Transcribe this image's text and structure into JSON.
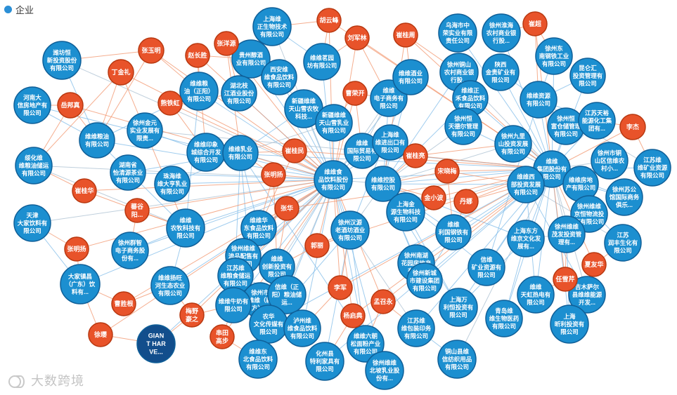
{
  "legend": {
    "label": "企业",
    "color": "#2b8fd6"
  },
  "watermark": {
    "text": "大数跨境"
  },
  "colors": {
    "company_fill": "#1c8fd0",
    "company_border": "#0f5f98",
    "person_fill": "#e8532a",
    "person_border": "#b83810",
    "dark_fill": "#124e8c",
    "edge_blue": "#7fbbe8",
    "edge_orange": "#f2936a",
    "edge_gray": "#a9bfd0"
  },
  "nodes": [
    {
      "id": "c1",
      "type": "company",
      "lines": [
        "潍坊恒",
        "新投资股份",
        "有限公司"
      ]
    },
    {
      "id": "c2",
      "type": "company",
      "lines": [
        "河南大",
        "信房地产有",
        "限公司"
      ]
    },
    {
      "id": "c3",
      "type": "company",
      "lines": [
        "绥化维",
        "维粮油储运",
        "有限公司"
      ]
    },
    {
      "id": "c4",
      "type": "company",
      "lines": [
        "天津",
        "大家饮料有",
        "限公司"
      ]
    },
    {
      "id": "c5",
      "type": "company",
      "lines": [
        "大家镇昌",
        "（广东）饮",
        "料有..."
      ]
    },
    {
      "id": "c6",
      "type": "dark",
      "lines": [
        "GIAN",
        "T HAR",
        "VE..."
      ]
    },
    {
      "id": "c7",
      "type": "company",
      "lines": [
        "维维粮油",
        "有限公司"
      ]
    },
    {
      "id": "c8",
      "type": "company",
      "lines": [
        "徐州金元",
        "实业发展有",
        "限责..."
      ]
    },
    {
      "id": "c9",
      "type": "company",
      "lines": [
        "湖南省",
        "怡清源茶业",
        "有限公司"
      ]
    },
    {
      "id": "c10",
      "type": "company",
      "lines": [
        "维维粮",
        "油（正阳）",
        "有限公司"
      ]
    },
    {
      "id": "c11",
      "type": "company",
      "lines": [
        "贵州醇酒",
        "业有限公司"
      ]
    },
    {
      "id": "c12",
      "type": "company",
      "lines": [
        "上海维",
        "正生物技术",
        "有限公司"
      ]
    },
    {
      "id": "c13",
      "type": "company",
      "lines": [
        "西安维",
        "维食品饮料",
        "有限公司"
      ]
    },
    {
      "id": "c14",
      "type": "company",
      "lines": [
        "湖北枝",
        "江酒业股份",
        "有限公司"
      ]
    },
    {
      "id": "c15",
      "type": "company",
      "lines": [
        "维维茗园",
        "坊有限公司"
      ]
    },
    {
      "id": "c16",
      "type": "company",
      "lines": [
        "新疆维维",
        "天山雪农牧",
        "科技..."
      ]
    },
    {
      "id": "c17",
      "type": "company",
      "lines": [
        "新疆维维",
        "天山雪乳业",
        "有限公司"
      ]
    },
    {
      "id": "c18",
      "type": "company",
      "lines": [
        "维维印象",
        "城综合开发",
        "有限公司"
      ]
    },
    {
      "id": "c19",
      "type": "company",
      "lines": [
        "维维乳业",
        "有限公司"
      ]
    },
    {
      "id": "c20",
      "type": "company",
      "lines": [
        "珠海维",
        "维大亨乳业",
        "有限公司"
      ]
    },
    {
      "id": "c21",
      "type": "company",
      "lines": [
        "维维",
        "农牧科技有",
        "限公司"
      ]
    },
    {
      "id": "c22",
      "type": "company",
      "lines": [
        "徐州群智",
        "电子商务股",
        "份有..."
      ]
    },
    {
      "id": "c23",
      "type": "company",
      "lines": [
        "维维扬旺",
        "河生态农业",
        "有限公司"
      ]
    },
    {
      "id": "c24",
      "type": "company",
      "lines": [
        "维维华",
        "东食品饮料",
        "有限公司"
      ]
    },
    {
      "id": "c25",
      "type": "company",
      "lines": [
        "徐州维维",
        "流品配售有",
        "限公司"
      ]
    },
    {
      "id": "c26",
      "type": "company",
      "lines": [
        "江苏维",
        "维粮食储运",
        "有限公司"
      ]
    },
    {
      "id": "c27",
      "type": "company",
      "lines": [
        "维维",
        "创新投资有",
        "限公司"
      ]
    },
    {
      "id": "c28",
      "type": "company",
      "lines": [
        "徐州市",
        "维维（新",
        "方）..."
      ]
    },
    {
      "id": "c29",
      "type": "company",
      "lines": [
        "维维牛奶有",
        "限公司"
      ]
    },
    {
      "id": "c30",
      "type": "company",
      "lines": [
        "信维（正",
        "阳）粮油储",
        "运..."
      ]
    },
    {
      "id": "c31",
      "type": "company",
      "lines": [
        "农华",
        "文化传媒有",
        "限公司"
      ]
    },
    {
      "id": "c32",
      "type": "company",
      "lines": [
        "泸州维",
        "维食品饮料",
        "有限公司"
      ]
    },
    {
      "id": "c33",
      "type": "company",
      "lines": [
        "维维东",
        "北食品饮料",
        "有限公司"
      ]
    },
    {
      "id": "c34",
      "type": "company",
      "lines": [
        "化州县",
        "特利家具有",
        "限公司"
      ]
    },
    {
      "id": "c35",
      "type": "company",
      "lines": [
        "维维六朝",
        "松面粉产业",
        "有限公司"
      ]
    },
    {
      "id": "c36",
      "type": "company",
      "lines": [
        "徐州维维",
        "北坡乳业股",
        "份有..."
      ]
    },
    {
      "id": "c37",
      "type": "company",
      "lines": [
        "维维食",
        "品饮料股份",
        "有限公司"
      ]
    },
    {
      "id": "c38",
      "type": "company",
      "lines": [
        "徐州汉源",
        "老酒坊酒业",
        "有限公司"
      ]
    },
    {
      "id": "c39",
      "type": "company",
      "lines": [
        "维维",
        "国际贸易有",
        "限公司"
      ]
    },
    {
      "id": "c40",
      "type": "company",
      "lines": [
        "上海维",
        "维进出口有",
        "限公司"
      ]
    },
    {
      "id": "c41",
      "type": "company",
      "lines": [
        "维维",
        "电子商务有",
        "限公司"
      ]
    },
    {
      "id": "c42",
      "type": "company",
      "lines": [
        "维维酒业",
        "有限公司"
      ]
    },
    {
      "id": "c43",
      "type": "company",
      "lines": [
        "维维控股",
        "有限公司"
      ]
    },
    {
      "id": "c44",
      "type": "company",
      "lines": [
        "上海金",
        "源生物科技",
        "有限公司"
      ]
    },
    {
      "id": "c45",
      "type": "company",
      "lines": [
        "徐州南湖",
        "花园房地产",
        "有限..."
      ]
    },
    {
      "id": "c46",
      "type": "company",
      "lines": [
        "徐州新城",
        "市建设集团",
        "有限公司"
      ]
    },
    {
      "id": "c47",
      "type": "company",
      "lines": [
        "江苏维",
        "维包装印务",
        "有限公司"
      ]
    },
    {
      "id": "c48",
      "type": "company",
      "lines": [
        "维维",
        "利国钢铁有",
        "限公司"
      ]
    },
    {
      "id": "c49",
      "type": "company",
      "lines": [
        "上海万",
        "利恒投资有",
        "限公司"
      ]
    },
    {
      "id": "c50",
      "type": "company",
      "lines": [
        "铜山县维",
        "信纺织用品",
        "有限公司"
      ]
    },
    {
      "id": "c51",
      "type": "company",
      "lines": [
        "乌海市中",
        "荣实业有限",
        "责任公司"
      ]
    },
    {
      "id": "c52",
      "type": "company",
      "lines": [
        "徐州淮海",
        "农村商业银",
        "行股..."
      ]
    },
    {
      "id": "c53",
      "type": "company",
      "lines": [
        "徐州铜山",
        "农村商业银",
        "行股..."
      ]
    },
    {
      "id": "c54",
      "type": "company",
      "lines": [
        "陕西",
        "金贵矿业有",
        "限公司"
      ]
    },
    {
      "id": "c55",
      "type": "company",
      "lines": [
        "维维正",
        "禾食品饮料",
        "有限公司"
      ]
    },
    {
      "id": "c56",
      "type": "company",
      "lines": [
        "徐州东",
        "南钢铁工业",
        "有限公司"
      ]
    },
    {
      "id": "c57",
      "type": "company",
      "lines": [
        "昆仑汇",
        "投资管理有",
        "限公司"
      ]
    },
    {
      "id": "c58",
      "type": "company",
      "lines": [
        "维维资源",
        "有限公司"
      ]
    },
    {
      "id": "c59",
      "type": "company",
      "lines": [
        "徐州恒",
        "天德尔管理",
        "有限公司"
      ]
    },
    {
      "id": "c60",
      "type": "company",
      "lines": [
        "徐州九里",
        "山投资发展",
        "有限公司"
      ]
    },
    {
      "id": "c61",
      "type": "company",
      "lines": [
        "徐州恒",
        "富仓储管理",
        "有限公司"
      ]
    },
    {
      "id": "c62",
      "type": "company",
      "lines": [
        "江苏天裕",
        "能源化工集",
        "团有..."
      ]
    },
    {
      "id": "c63",
      "type": "company",
      "lines": [
        "维维",
        "集团股份有",
        "限公司"
      ]
    },
    {
      "id": "c64",
      "type": "company",
      "lines": [
        "维维西",
        "部投资发展",
        "有限公司"
      ]
    },
    {
      "id": "c65",
      "type": "company",
      "lines": [
        "维维房地",
        "产有限公司"
      ]
    },
    {
      "id": "c66",
      "type": "company",
      "lines": [
        "徐州市铜",
        "山区信维农",
        "村小..."
      ]
    },
    {
      "id": "c67",
      "type": "company",
      "lines": [
        "江苏维",
        "维矿业资源",
        "有限公司"
      ]
    },
    {
      "id": "c68",
      "type": "company",
      "lines": [
        "徐州苏公",
        "馆国际商务",
        "俱乐..."
      ]
    },
    {
      "id": "c69",
      "type": "company",
      "lines": [
        "徐州维维",
        "京恒物流投",
        "资有限公司"
      ]
    },
    {
      "id": "c70",
      "type": "company",
      "lines": [
        "上海东方",
        "维京文化发",
        "展有..."
      ]
    },
    {
      "id": "c71",
      "type": "company",
      "lines": [
        "徐州维维",
        "茂发投资管",
        "理有..."
      ]
    },
    {
      "id": "c72",
      "type": "company",
      "lines": [
        "江苏",
        "润丰生化有",
        "限公司"
      ]
    },
    {
      "id": "c73",
      "type": "company",
      "lines": [
        "信维",
        "矿业资源有",
        "限公司"
      ]
    },
    {
      "id": "c74",
      "type": "company",
      "lines": [
        "维维",
        "天虹热电有",
        "限公司"
      ]
    },
    {
      "id": "c75",
      "type": "company",
      "lines": [
        "吉木萨尔",
        "县维维能源",
        "开发..."
      ]
    },
    {
      "id": "c76",
      "type": "company",
      "lines": [
        "青岛维",
        "维生物医药",
        "有限公司"
      ]
    },
    {
      "id": "c77",
      "type": "company",
      "lines": [
        "上海",
        "昕利投资有",
        "限公司"
      ]
    },
    {
      "id": "p1",
      "type": "person",
      "lines": [
        "张玉明"
      ]
    },
    {
      "id": "p2",
      "type": "person",
      "lines": [
        "丁金礼"
      ]
    },
    {
      "id": "p3",
      "type": "person",
      "lines": [
        "赵长胜"
      ]
    },
    {
      "id": "p4",
      "type": "person",
      "lines": [
        "张洋源"
      ]
    },
    {
      "id": "p5",
      "type": "person",
      "lines": [
        "岳邦真"
      ]
    },
    {
      "id": "p6",
      "type": "person",
      "lines": [
        "熊铁虹"
      ]
    },
    {
      "id": "p7",
      "type": "person",
      "lines": [
        "胡云峰"
      ]
    },
    {
      "id": "p8",
      "type": "person",
      "lines": [
        "刘军林"
      ]
    },
    {
      "id": "p9",
      "type": "person",
      "lines": [
        "崔桂周"
      ]
    },
    {
      "id": "p10",
      "type": "person",
      "lines": [
        "崔超"
      ]
    },
    {
      "id": "p11",
      "type": "person",
      "lines": [
        "曹荣开"
      ]
    },
    {
      "id": "p12",
      "type": "person",
      "lines": [
        "李杰"
      ]
    },
    {
      "id": "p13",
      "type": "person",
      "lines": [
        "崔桂民"
      ]
    },
    {
      "id": "p14",
      "type": "person",
      "lines": [
        "崔桂亮"
      ]
    },
    {
      "id": "p15",
      "type": "person",
      "lines": [
        "张明扬"
      ]
    },
    {
      "id": "p16",
      "type": "person",
      "lines": [
        "宋晓梅"
      ]
    },
    {
      "id": "p17",
      "type": "person",
      "lines": [
        "崔桂华"
      ]
    },
    {
      "id": "p18",
      "type": "person",
      "lines": [
        "蕃谷",
        "阳..."
      ]
    },
    {
      "id": "p19",
      "type": "person",
      "lines": [
        "张华"
      ]
    },
    {
      "id": "p20",
      "type": "person",
      "lines": [
        "金小波"
      ]
    },
    {
      "id": "p21",
      "type": "person",
      "lines": [
        "丹娜"
      ]
    },
    {
      "id": "p22",
      "type": "person",
      "lines": [
        "张明扬"
      ]
    },
    {
      "id": "p23",
      "type": "person",
      "lines": [
        "郭丽"
      ]
    },
    {
      "id": "p24",
      "type": "person",
      "lines": [
        "夏友华"
      ]
    },
    {
      "id": "p25",
      "type": "person",
      "lines": [
        "任雪芹"
      ]
    },
    {
      "id": "p26",
      "type": "person",
      "lines": [
        "曹胜根"
      ]
    },
    {
      "id": "p27",
      "type": "person",
      "lines": [
        "梅野",
        "豪之"
      ]
    },
    {
      "id": "p28",
      "type": "person",
      "lines": [
        "李军"
      ]
    },
    {
      "id": "p29",
      "type": "person",
      "lines": [
        "孟召永"
      ]
    },
    {
      "id": "p30",
      "type": "person",
      "lines": [
        "徐璎"
      ]
    },
    {
      "id": "p31",
      "type": "person",
      "lines": [
        "串田",
        "高步"
      ]
    },
    {
      "id": "p32",
      "type": "person",
      "lines": [
        "杨启典"
      ]
    }
  ]
}
